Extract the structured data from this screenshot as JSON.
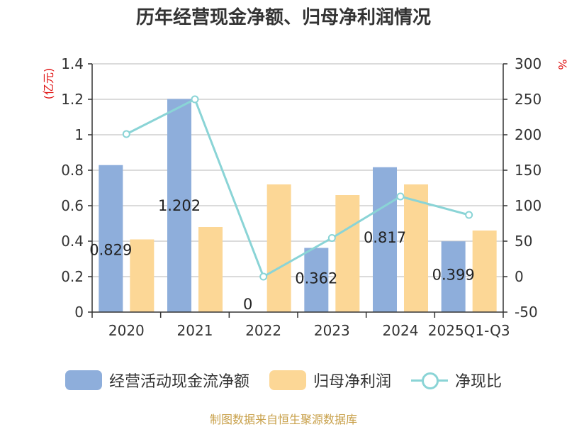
{
  "title": "历年经营现金净额、归母净利润情况",
  "source": "制图数据来自恒生聚源数据库",
  "colors": {
    "cash_flow": "#8eaedb",
    "net_profit": "#fcd796",
    "ratio": "#8ad4d6",
    "unit_red": "#e01515",
    "title": "#333333",
    "source": "#c8a04a"
  },
  "chart_data": {
    "type": "bar",
    "categories": [
      "2020",
      "2021",
      "2022",
      "2023",
      "2024",
      "2025Q1-Q3"
    ],
    "y_left": {
      "unit": "(亿元)",
      "ticks": [
        "0",
        "0.2",
        "0.4",
        "0.6",
        "0.8",
        "1",
        "1.2",
        "1.4"
      ],
      "range": [
        0,
        1.4
      ]
    },
    "y_right": {
      "unit": "%",
      "ticks": [
        "-50",
        "0",
        "50",
        "100",
        "150",
        "200",
        "250",
        "300"
      ],
      "range": [
        -50,
        300
      ]
    },
    "series": [
      {
        "name": "经营活动现金流净额",
        "type": "bar",
        "axis": "left",
        "values": [
          0.829,
          1.202,
          0,
          0.362,
          0.817,
          0.399
        ],
        "labels": [
          "0.829",
          "1.202",
          "0",
          "0.362",
          "0.817",
          "0.399"
        ]
      },
      {
        "name": "归母净利润",
        "type": "bar",
        "axis": "left",
        "values": [
          0.41,
          0.48,
          0.72,
          0.66,
          0.72,
          0.46
        ]
      },
      {
        "name": "净现比",
        "type": "line",
        "axis": "right",
        "values": [
          201,
          250,
          0,
          54.5,
          113,
          87
        ]
      }
    ],
    "grid": true,
    "legend_position": "bottom"
  }
}
